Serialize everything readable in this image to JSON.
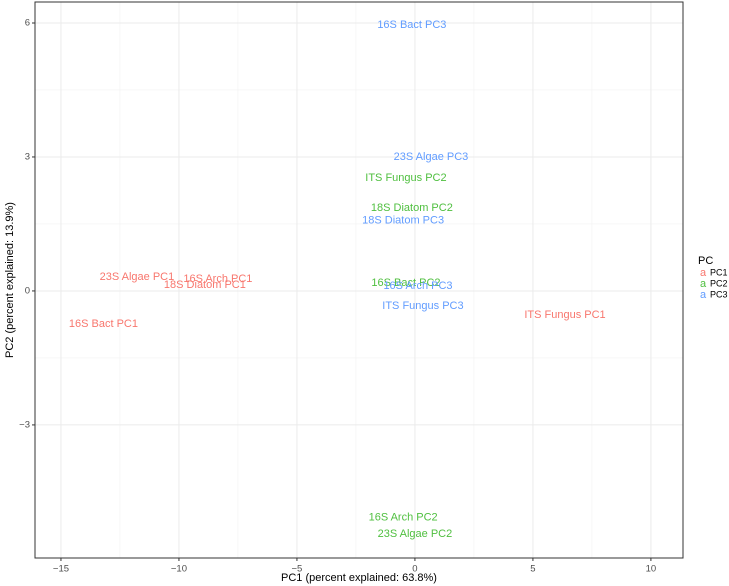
{
  "chart_data": {
    "type": "text-scatter",
    "xlabel": "PC1 (percent explained: 63.8%)",
    "ylabel": "PC2 (percent explained: 13.9%)",
    "xlim": [
      -16.1,
      11.36
    ],
    "ylim": [
      -5.98,
      6.47
    ],
    "xticks": [
      {
        "value": -15,
        "label": "−15"
      },
      {
        "value": -10,
        "label": "−10"
      },
      {
        "value": -5,
        "label": "−5"
      },
      0,
      5,
      10
    ],
    "yticks": [
      {
        "value": -3,
        "label": "−3"
      },
      0,
      3,
      6
    ],
    "grid": true,
    "legend_title": "PC",
    "legend_key_text": "a",
    "legend_position": "right",
    "series": [
      {
        "name": "PC1",
        "color": "#f8766d",
        "labels": [
          "23S Algae PC1",
          "16S Arch PC1",
          "18S Diatom PC1",
          "16S Bact PC1",
          "ITS Fungus PC1"
        ],
        "x": [
          -11.78,
          -8.35,
          -8.9,
          -13.2,
          6.36
        ],
        "values": [
          0.31,
          0.27,
          0.13,
          -0.74,
          -0.54
        ]
      },
      {
        "name": "PC2",
        "color": "#4fbf3f",
        "labels": [
          "ITS Fungus PC2",
          "18S Diatom PC2",
          "16S Bact PC2",
          "16S Arch PC2",
          "23S Algae PC2"
        ],
        "x": [
          -0.38,
          -0.13,
          -0.38,
          -0.5,
          0
        ],
        "values": [
          2.53,
          1.86,
          0.18,
          -5.08,
          -5.44
        ]
      },
      {
        "name": "PC3",
        "color": "#619cff",
        "labels": [
          "16S Bact PC3",
          "23S Algae PC3",
          "18S Diatom PC3",
          "16S Arch PC3",
          "ITS Fungus PC3"
        ],
        "x": [
          -0.13,
          0.68,
          -0.5,
          0.13,
          0.34
        ],
        "values": [
          5.95,
          3.0,
          1.57,
          0.11,
          -0.34
        ]
      }
    ]
  }
}
